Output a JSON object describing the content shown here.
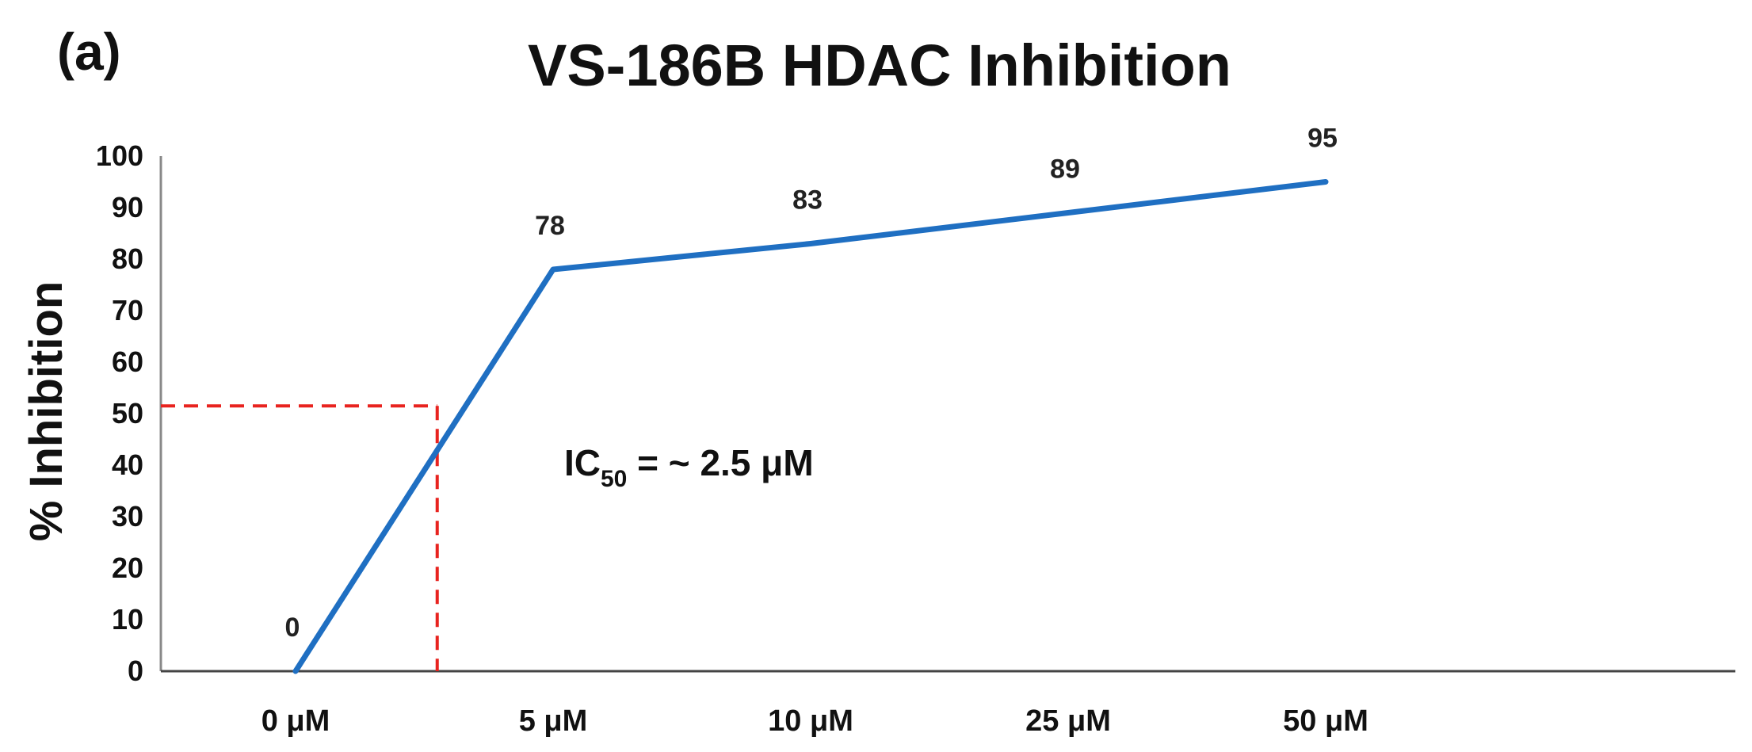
{
  "chart_data": {
    "type": "line",
    "panel_label": "(a)",
    "title": "VS-186B HDAC Inhibition",
    "xlabel": "",
    "ylabel": "% Inhibition",
    "categories": [
      "0 μM",
      "5 μM",
      "10 μM",
      "25 μM",
      "50 μM"
    ],
    "series": [
      {
        "values": [
          0,
          78,
          83,
          89,
          95
        ],
        "color": "#1f6fc2"
      }
    ],
    "data_labels": [
      "0",
      "78",
      "83",
      "89",
      "95"
    ],
    "ylim": [
      0,
      100
    ],
    "yticks": [
      0,
      10,
      20,
      30,
      40,
      50,
      60,
      70,
      80,
      90,
      100
    ],
    "grid": false,
    "legend": "none",
    "reference_lines": {
      "x_category_position": 0.55,
      "y_value": 51.5,
      "color": "#e8231f",
      "style": "dashed"
    },
    "annotation": {
      "prefix": "IC",
      "subscript": "50",
      "suffix": " = ~ 2.5 μM"
    }
  }
}
